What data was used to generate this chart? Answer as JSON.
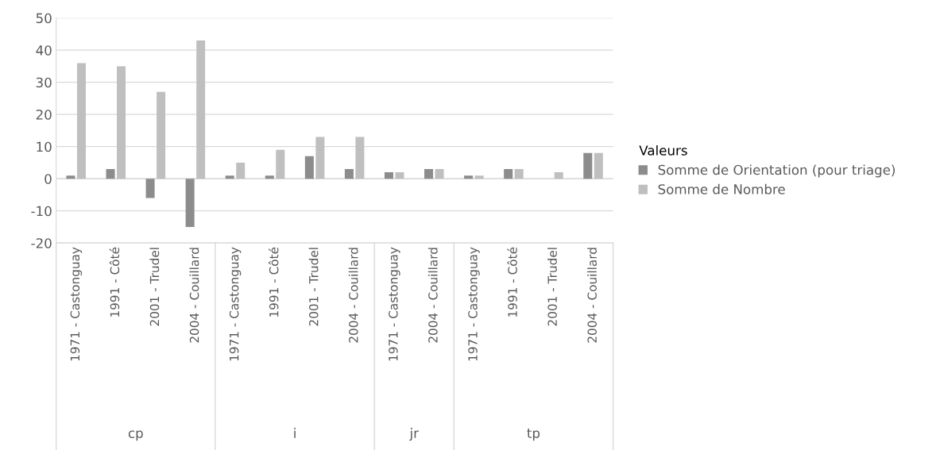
{
  "chart_data": {
    "type": "bar",
    "categories": [
      "1971 - Castonguay",
      "1991 - Côté",
      "2001 - Trudel",
      "2004 - Couillard",
      "1971 - Castonguay",
      "1991 - Côté",
      "2001 - Trudel",
      "2004 - Couillard",
      "1971 - Castonguay",
      "2004 - Couillard",
      "1971 - Castonguay",
      "1991 - Côté",
      "2001 - Trudel",
      "2004 - Couillard"
    ],
    "series": [
      {
        "name": "Somme de Orientation (pour triage)",
        "color": "#8c8c8c",
        "values": [
          1,
          3,
          -6,
          -15,
          1,
          1,
          7,
          3,
          2,
          3,
          1,
          3,
          null,
          8
        ]
      },
      {
        "name": "Somme de Nombre",
        "color": "#bfbfbf",
        "values": [
          36,
          35,
          27,
          43,
          5,
          9,
          13,
          13,
          2,
          3,
          1,
          3,
          2,
          8
        ]
      }
    ],
    "ylim": [
      -20,
      50
    ],
    "yticks": [
      -20,
      -10,
      0,
      10,
      20,
      30,
      40,
      50
    ],
    "grid": "y",
    "legend": "right",
    "legend_title": "Valeurs",
    "annotations": [
      "cp",
      "i",
      "jr",
      "tp"
    ]
  }
}
